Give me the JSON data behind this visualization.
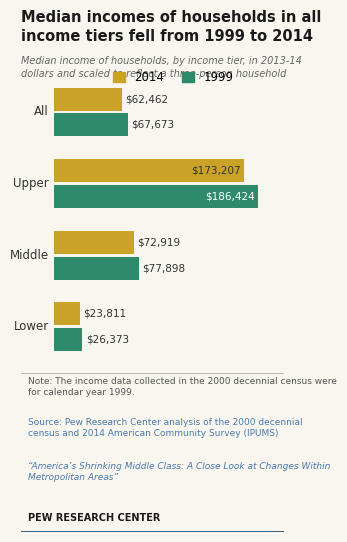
{
  "title": "Median incomes of households in all\nincome tiers fell from 1999 to 2014",
  "subtitle": "Median income of households, by income tier, in 2013-14\ndollars and scaled to reflect a three-person household",
  "categories": [
    "All",
    "Upper",
    "Middle",
    "Lower"
  ],
  "values_2014": [
    62462,
    173207,
    72919,
    23811
  ],
  "values_1999": [
    67673,
    186424,
    77898,
    26373
  ],
  "labels_2014": [
    "$62,462",
    "$173,207",
    "$72,919",
    "$23,811"
  ],
  "labels_1999": [
    "$67,673",
    "$186,424",
    "$77,898",
    "$26,373"
  ],
  "color_2014": "#C9A227",
  "color_1999": "#2D8A6A",
  "max_value": 210000,
  "note": "Note: The income data collected in the 2000 decennial census were\nfor calendar year 1999.",
  "source": "Source: Pew Research Center analysis of the 2000 decennial\ncensus and 2014 American Community Survey (IPUMS)",
  "quote": "“America’s Shrinking Middle Class: A Close Look at Changes Within\nMetropolitan Areas”",
  "org": "PEW RESEARCH CENTER",
  "bg_color": "#f9f6ef",
  "note_bg": "#ffffff",
  "bar_height": 0.32,
  "legend_2014": "2014",
  "legend_1999": "1999",
  "title_color": "#1a1a1a",
  "subtitle_color": "#666666",
  "note_color": "#555555",
  "source_color": "#4a7aad",
  "org_color": "#1a1a1a",
  "label_outside_color": "#333333",
  "label_inside_color": "#ffffff"
}
